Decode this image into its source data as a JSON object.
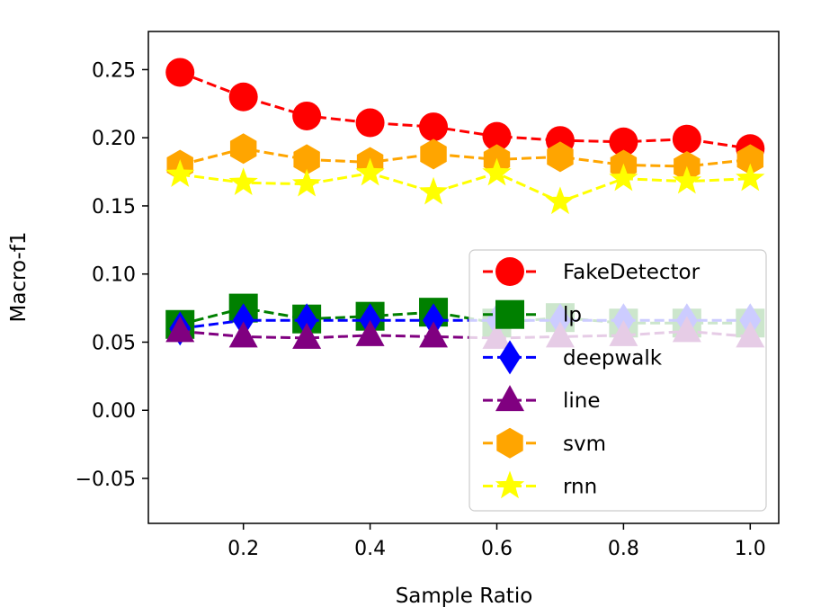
{
  "chart_data": {
    "type": "line",
    "title": "",
    "xlabel": "Sample Ratio",
    "ylabel": "Macro-f1",
    "xlim": [
      0.05,
      1.045
    ],
    "ylim": [
      -0.083,
      0.278
    ],
    "x": [
      0.1,
      0.2,
      0.3,
      0.4,
      0.5,
      0.6,
      0.7,
      0.8,
      0.9,
      1.0
    ],
    "xticks": [
      0.2,
      0.4,
      0.6,
      0.8,
      1.0
    ],
    "xtick_labels": [
      "0.2",
      "0.4",
      "0.6",
      "0.8",
      "1.0"
    ],
    "yticks": [
      -0.05,
      0.0,
      0.05,
      0.1,
      0.15,
      0.2,
      0.25
    ],
    "ytick_labels": [
      "−0.05",
      "0.00",
      "0.05",
      "0.10",
      "0.15",
      "0.20",
      "0.25"
    ],
    "grid": false,
    "legend_position": "lower-right",
    "series": [
      {
        "name": "FakeDetector",
        "color": "#ff0000",
        "marker": "circle",
        "values": [
          0.248,
          0.23,
          0.216,
          0.211,
          0.208,
          0.201,
          0.198,
          0.197,
          0.199,
          0.192
        ]
      },
      {
        "name": "lp",
        "color": "#008000",
        "marker": "square",
        "values": [
          0.063,
          0.075,
          0.067,
          0.069,
          0.072,
          0.064,
          0.068,
          0.064,
          0.064,
          0.064
        ]
      },
      {
        "name": "deepwalk",
        "color": "#0000ff",
        "marker": "diamond",
        "values": [
          0.06,
          0.066,
          0.066,
          0.066,
          0.066,
          0.066,
          0.066,
          0.066,
          0.066,
          0.066
        ]
      },
      {
        "name": "line",
        "color": "#800080",
        "marker": "triangle",
        "values": [
          0.058,
          0.054,
          0.053,
          0.055,
          0.054,
          0.053,
          0.054,
          0.055,
          0.058,
          0.054
        ]
      },
      {
        "name": "svm",
        "color": "#ffa500",
        "marker": "hexagon",
        "values": [
          0.18,
          0.192,
          0.184,
          0.182,
          0.188,
          0.184,
          0.186,
          0.18,
          0.179,
          0.184
        ]
      },
      {
        "name": "rnn",
        "color": "#ffff00",
        "marker": "star",
        "values": [
          0.173,
          0.167,
          0.166,
          0.174,
          0.16,
          0.174,
          0.153,
          0.17,
          0.168,
          0.17
        ]
      }
    ]
  }
}
